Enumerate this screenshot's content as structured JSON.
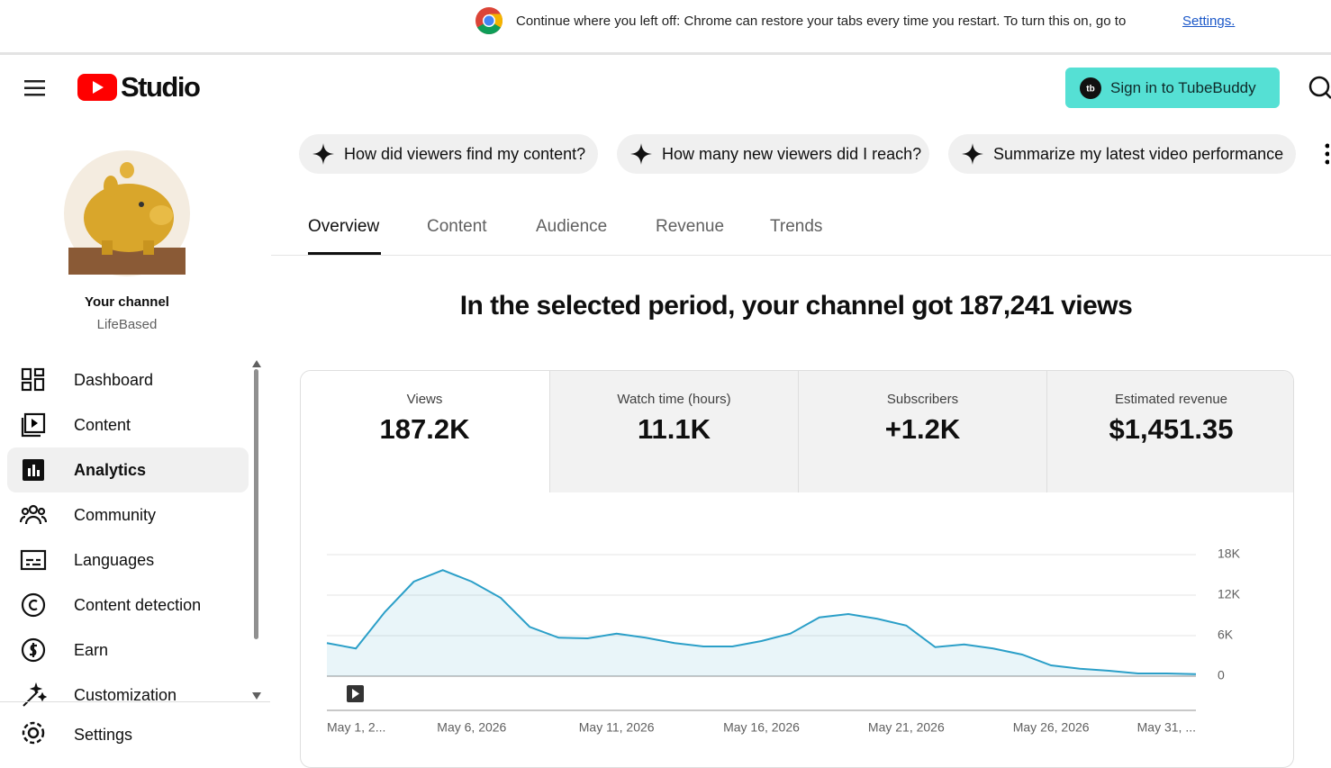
{
  "banner": {
    "text": "Continue where you left off: Chrome can restore your tabs every time you restart. To turn this on, go to",
    "link": "Settings."
  },
  "header": {
    "logo": "Studio",
    "button": "Sign in to TubeBuddy"
  },
  "sidebar": {
    "channel_label": "Your channel",
    "channel_name": "LifeBased",
    "nav": [
      "Dashboard",
      "Content",
      "Analytics",
      "Community",
      "Languages",
      "Content detection",
      "Earn",
      "Customization"
    ],
    "settings": "Settings"
  },
  "suggestions": [
    "How did viewers find my content?",
    "How many new viewers did I reach?",
    "Summarize my latest video performance"
  ],
  "tabs": [
    "Overview",
    "Content",
    "Audience",
    "Revenue",
    "Trends"
  ],
  "headline": "In the selected period, your channel got 187,241 views",
  "metrics": [
    {
      "label": "Views",
      "value": "187.2K"
    },
    {
      "label": "Watch time (hours)",
      "value": "11.1K"
    },
    {
      "label": "Subscribers",
      "value": "+1.2K"
    },
    {
      "label": "Estimated revenue",
      "value": "$1,451.35"
    }
  ],
  "chart_data": {
    "type": "area",
    "color": "#2b9fc8",
    "categories": [
      "May 1, 2...",
      null,
      null,
      null,
      null,
      "May 6, 2026",
      null,
      null,
      null,
      null,
      "May 11, 2026",
      null,
      null,
      null,
      null,
      "May 16, 2026",
      null,
      null,
      null,
      null,
      "May 21, 2026",
      null,
      null,
      null,
      null,
      "May 26, 2026",
      null,
      null,
      null,
      null,
      "May 31, ..."
    ],
    "values": [
      4900,
      4100,
      9500,
      14000,
      15700,
      14000,
      11600,
      7300,
      5700,
      5600,
      6300,
      5700,
      4900,
      4400,
      4400,
      5200,
      6300,
      8700,
      9200,
      8500,
      7500,
      4300,
      4700,
      4100,
      3200,
      1600,
      1100,
      800,
      400,
      400,
      300
    ],
    "ylim": [
      0,
      18000
    ],
    "yticks": [
      0,
      {
        "value": 6000,
        "label": "6K"
      },
      {
        "value": 12000,
        "label": "12K"
      },
      {
        "value": 18000,
        "label": "18K"
      }
    ],
    "grid": true
  }
}
